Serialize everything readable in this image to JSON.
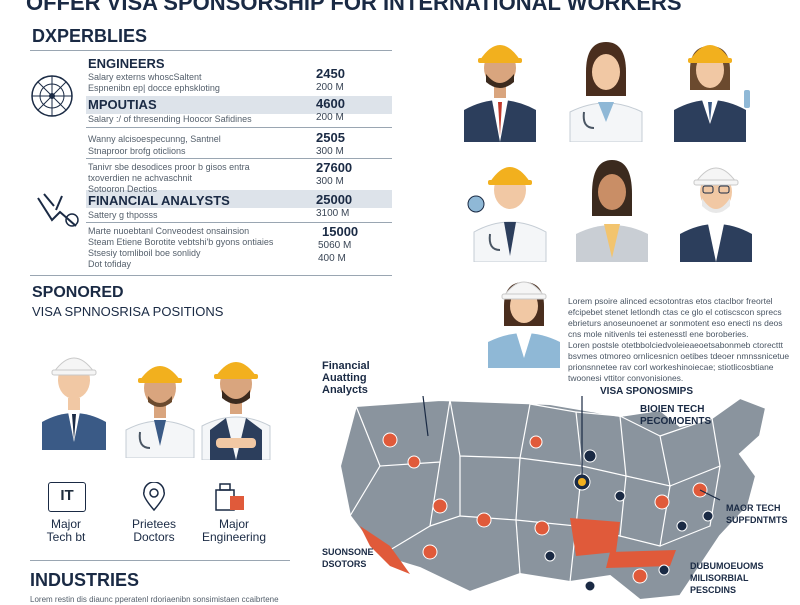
{
  "header": {
    "title": "OFFER VISA SPONSORSHIP FOR INTERNATIONAL WORKERS"
  },
  "left": {
    "section_title": "DXPERBLIES",
    "rows": [
      {
        "title": "ENGINEERS",
        "lines": [
          "Salary externs whoscSaltent",
          "Espnenibn ep| docce ephskloting"
        ],
        "num": "2450",
        "sub": "200 M"
      },
      {
        "title": "MPOUTIAS",
        "lines": [
          "Salary :/ of thresending Hoocor Safidines"
        ],
        "num": "4600",
        "sub": "200 M"
      },
      {
        "title": "",
        "lines": [
          "Wanny alcisoespecunng, Santnel",
          "Stnaproor brofg oticlions"
        ],
        "num": "2505",
        "sub": "300 M"
      },
      {
        "title": "",
        "lines": [
          "Tanivr sbe desodices proor b gisos entra",
          "txoverdien ne achvaschnit",
          "Sotooron Dectios"
        ],
        "num": "27600",
        "sub": "300 M"
      },
      {
        "title": "FINANCIAL ANALYSTS",
        "lines": [
          "Sattery g thposss"
        ],
        "num": "25000",
        "sub": "3100 M"
      },
      {
        "title": "",
        "lines": [
          "Marte nuoebtanl Conveodest onsainsion",
          "Steam Etiene Borotite vebtshi'b gyons ontiaies",
          "Stsesiy tomliboil boe sonlidy",
          "Dot tofiday"
        ],
        "num": "15000",
        "sub": "5060 M",
        "sub2": "400 M"
      }
    ]
  },
  "sponsored": {
    "line1": "SPONORED",
    "line2": "VISA SPNNOSRISA POSITIONS"
  },
  "icons": [
    {
      "glyph": "IT",
      "label": "Major\nTech bt"
    },
    {
      "glyph": "",
      "label": "Prietees\nDoctors"
    },
    {
      "glyph": "",
      "label": "Major\nEngineering"
    }
  ],
  "industries": {
    "title": "INDUSTRIES",
    "desc": "Lorem restin dis diaunc pperatenl rdoriaenibn sonsimistaen ccaibrtene"
  },
  "right_text": {
    "lorem1": "Lorem psoire alinced ecsotontras etos ctaclbor freortel",
    "lorem2": "efcipebet stenet letlondh ctas ce glo el cotiscscon sprecs",
    "lorem3": "ebrieturs anoseunoenet ar sonmotent eso enecti ns deos",
    "lorem4": "cns mole nitivenls tei estenesstl ene boroberies.",
    "lorem5": "Loren postsle otetbbolciedvoleieaeoetsabonmeb ctorecttt",
    "lorem6": "bsvmes otmoreo ornlicesnicn oetibes tdeoer nmnssnicetue",
    "lorem7": "prionsnnetee rav corl workeshinoiecae; stiotlicosbtiane",
    "lorem8": "twoonesi vttitor convonisiones."
  },
  "map": {
    "label_financial": "Financial\nAuatting\nAnalycts",
    "label_visa": "VISA SPONOSMIPS",
    "label_biotech": "BIOIEN TECH\nPECOMOENTS",
    "label_major_tech": "MAOR TECH\nSUPFDNTMTS",
    "label_sponsored": "SUONSONE\nDSOTORS",
    "label_medical": "DUBUMOEUOMS\nMILISORBIAL\nPESCDINS"
  },
  "colors": {
    "navy": "#1a2a44",
    "map_gray": "#8a949e",
    "accent_red": "#e05a3a",
    "hat_yellow": "#f2b01e",
    "band": "#dde3ea"
  }
}
